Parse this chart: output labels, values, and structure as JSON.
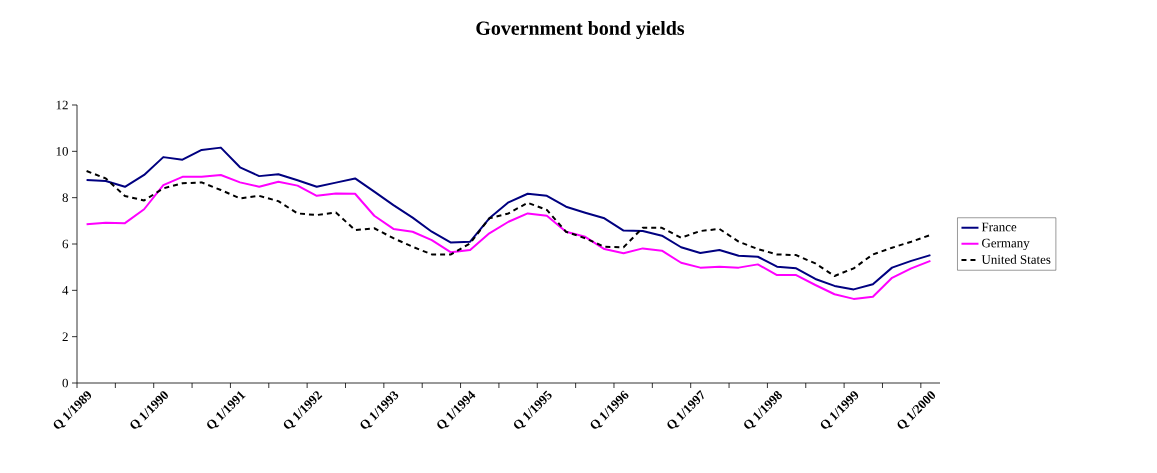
{
  "chart_data": {
    "type": "line",
    "title": "Government bond yields",
    "categories": [
      "Q 1/1989",
      null,
      null,
      null,
      "Q 1/1990",
      null,
      null,
      null,
      "Q 1/1991",
      null,
      null,
      null,
      "Q 1/1992",
      null,
      null,
      null,
      "Q 1/1993",
      null,
      null,
      null,
      "Q 1/1994",
      null,
      null,
      null,
      "Q 1/1995",
      null,
      null,
      null,
      "Q 1/1996",
      null,
      null,
      null,
      "Q 1/1997",
      null,
      null,
      null,
      "Q 1/1998",
      null,
      null,
      null,
      "Q 1/1999",
      null,
      null,
      null,
      "Q 1/2000"
    ],
    "series": [
      {
        "name": "France",
        "color": "#000080",
        "line_style": "solid",
        "values": [
          8.76,
          8.72,
          8.47,
          8.98,
          9.75,
          9.64,
          10.06,
          10.16,
          9.31,
          8.93,
          9.01,
          8.75,
          8.47,
          8.65,
          8.83,
          8.26,
          7.68,
          7.14,
          6.53,
          6.06,
          6.1,
          7.11,
          7.8,
          8.17,
          8.08,
          7.61,
          7.35,
          7.11,
          6.58,
          6.56,
          6.36,
          5.86,
          5.61,
          5.74,
          5.49,
          5.45,
          5.02,
          4.95,
          4.49,
          4.19,
          4.04,
          4.26,
          4.98,
          5.27,
          5.52
        ]
      },
      {
        "name": "Germany",
        "color": "#ff00ff",
        "line_style": "solid",
        "values": [
          6.85,
          6.92,
          6.9,
          7.5,
          8.54,
          8.9,
          8.9,
          8.98,
          8.66,
          8.47,
          8.69,
          8.52,
          8.08,
          8.18,
          8.17,
          7.22,
          6.65,
          6.53,
          6.17,
          5.64,
          5.74,
          6.46,
          6.96,
          7.32,
          7.22,
          6.53,
          6.31,
          5.78,
          5.6,
          5.81,
          5.71,
          5.19,
          4.98,
          5.02,
          4.98,
          5.12,
          4.66,
          4.66,
          4.23,
          3.83,
          3.63,
          3.72,
          4.54,
          4.95,
          5.27
        ]
      },
      {
        "name": "United States",
        "color": "#000000",
        "line_style": "dashed",
        "values": [
          9.15,
          8.83,
          8.07,
          7.88,
          8.4,
          8.62,
          8.66,
          8.33,
          7.97,
          8.08,
          7.85,
          7.32,
          7.25,
          7.36,
          6.6,
          6.68,
          6.25,
          5.88,
          5.55,
          5.55,
          6.03,
          7.11,
          7.32,
          7.78,
          7.47,
          6.53,
          6.25,
          5.88,
          5.86,
          6.7,
          6.7,
          6.27,
          6.56,
          6.65,
          6.1,
          5.78,
          5.55,
          5.52,
          5.16,
          4.62,
          4.95,
          5.55,
          5.84,
          6.1,
          6.39
        ]
      }
    ],
    "ylim": [
      0,
      12
    ],
    "yticks": [
      0,
      2,
      4,
      6,
      8,
      10,
      12
    ],
    "legend": "right",
    "marker": "none"
  }
}
